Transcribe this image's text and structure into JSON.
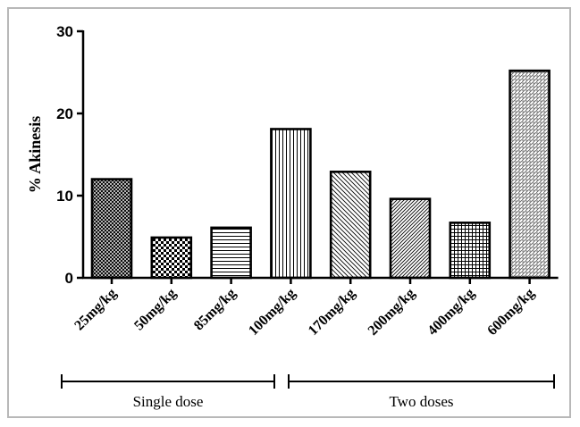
{
  "chart_data": {
    "type": "bar",
    "ylabel": "% Akinesis",
    "ylim": [
      0,
      30
    ],
    "yticks": [
      0,
      10,
      20,
      30
    ],
    "categories": [
      "25mg/kg",
      "50mg/kg",
      "85mg/kg",
      "100mg/kg",
      "170mg/kg",
      "200mg/kg",
      "400mg/kg",
      "600mg/kg"
    ],
    "values": [
      12,
      4.9,
      6.1,
      18.1,
      12.9,
      9.6,
      6.7,
      25.2
    ],
    "patterns": [
      "crosshatch",
      "checker",
      "horizontal",
      "vertical",
      "diagonal",
      "diagonal-dense",
      "grid",
      "dots"
    ],
    "groups": [
      {
        "label": "Single dose",
        "categories": [
          "25mg/kg",
          "50mg/kg",
          "85mg/kg",
          "100mg/kg"
        ]
      },
      {
        "label": "Two doses",
        "categories": [
          "170mg/kg",
          "200mg/kg",
          "400mg/kg",
          "600mg/kg"
        ]
      }
    ],
    "grid": false,
    "bar_color": "#000000"
  }
}
